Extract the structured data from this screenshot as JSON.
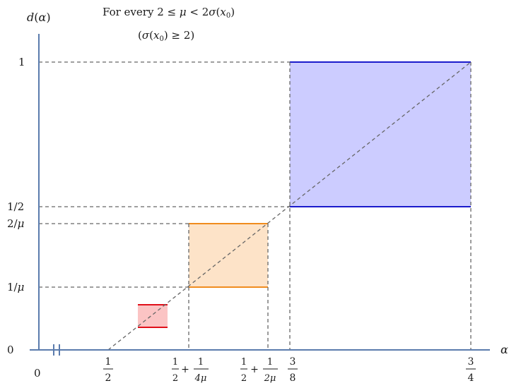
{
  "title": {
    "line1_prefix": "For every 2 ≤ ",
    "line1_mu": "μ",
    "line1_mid": " < 2",
    "line1_sigma": "σ",
    "line1_open": "(",
    "line1_x": "x",
    "line1_sub": "0",
    "line1_close": ")",
    "line2_open": "(",
    "line2_sigma": "σ",
    "line2_paren": "(",
    "line2_x": "x",
    "line2_sub": "0",
    "line2_rest": ") ≥ 2)"
  },
  "axes": {
    "y_label_d": "d",
    "y_label_open": "(",
    "y_label_alpha": "α",
    "y_label_close": ")",
    "x_label": "α",
    "origin_x": "0",
    "origin_y": "0"
  },
  "y_ticks": {
    "one": "1",
    "half": "1/2",
    "two_mu_num": "2/",
    "two_mu_mu": "μ",
    "one_mu_num": "1/",
    "one_mu_mu": "μ"
  },
  "x_ticks": {
    "half_num": "1",
    "half_den": "2",
    "q1_a_num": "1",
    "q1_a_den": "2",
    "q1_plus": "+",
    "q1_b_num": "1",
    "q1_b_den": "4μ",
    "q2_a_num": "1",
    "q2_a_den": "2",
    "q2_plus": "+",
    "q2_b_num": "1",
    "q2_b_den": "2μ",
    "three8_num": "3",
    "three8_den": "8",
    "three4_num": "3",
    "three4_den": "4"
  },
  "colors": {
    "axis": "#5b7cad",
    "dash": "#666666",
    "blue_fill": "#ccccff",
    "blue_edge": "#1a1acc",
    "orange_fill": "#fde3c8",
    "orange_edge": "#f08c1e",
    "red_fill": "#fbc4c4",
    "red_edge": "#e0101a"
  }
}
